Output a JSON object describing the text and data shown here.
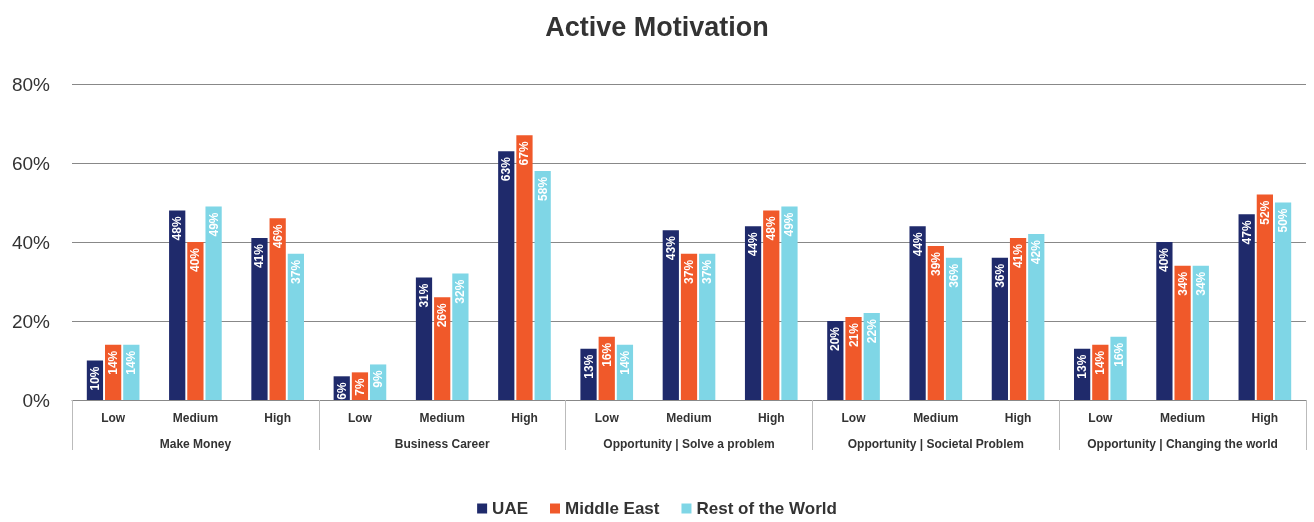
{
  "chart_data": {
    "type": "bar",
    "title": "Active Motivation",
    "categories": [
      "Low",
      "Medium",
      "High",
      "Low",
      "Medium",
      "High",
      "Low",
      "Medium",
      "High",
      "Low",
      "Medium",
      "High",
      "Low",
      "Medium",
      "High"
    ],
    "annotations": [
      "Make Money",
      "Business Career",
      "Opportunity | Solve a problem",
      "Opportunity | Societal Problem",
      "Opportunity | Changing the world"
    ],
    "series": [
      {
        "name": "UAE",
        "color": "#1f2a6b",
        "values": [
          10,
          48,
          41,
          6,
          31,
          63,
          13,
          43,
          44,
          20,
          44,
          36,
          13,
          40,
          47
        ],
        "value_labels": [
          "10%",
          "48%",
          "41%",
          "6%",
          "31%",
          "63%",
          "13%",
          "43%",
          "44%",
          "20%",
          "44%",
          "36%",
          "13%",
          "40%",
          "47%"
        ]
      },
      {
        "name": "Middle East",
        "color": "#f0592a",
        "values": [
          14,
          40,
          46,
          7,
          26,
          67,
          16,
          37,
          48,
          21,
          39,
          41,
          14,
          34,
          52
        ],
        "value_labels": [
          "14%",
          "40%",
          "46%",
          "7%",
          "26%",
          "67%",
          "16%",
          "37%",
          "48%",
          "21%",
          "39%",
          "41%",
          "14%",
          "34%",
          "52%"
        ]
      },
      {
        "name": "Rest of the World",
        "color": "#7fd6e6",
        "values": [
          14,
          49,
          37,
          9,
          32,
          58,
          14,
          37,
          49,
          22,
          36,
          42,
          16,
          34,
          50
        ],
        "value_labels": [
          "14%",
          "49%",
          "37%",
          "9%",
          "32%",
          "58%",
          "14%",
          "37%",
          "49%",
          "22%",
          "36%",
          "42%",
          "16%",
          "34%",
          "50%"
        ]
      }
    ],
    "ylim": [
      0,
      80
    ],
    "yticks": [
      {
        "value": 0,
        "label": "0%"
      },
      {
        "value": 20,
        "label": "20%"
      },
      {
        "value": 40,
        "label": "40%"
      },
      {
        "value": 60,
        "label": "60%"
      },
      {
        "value": 80,
        "label": "80%"
      }
    ],
    "grid": "y",
    "legend": "bottom"
  }
}
